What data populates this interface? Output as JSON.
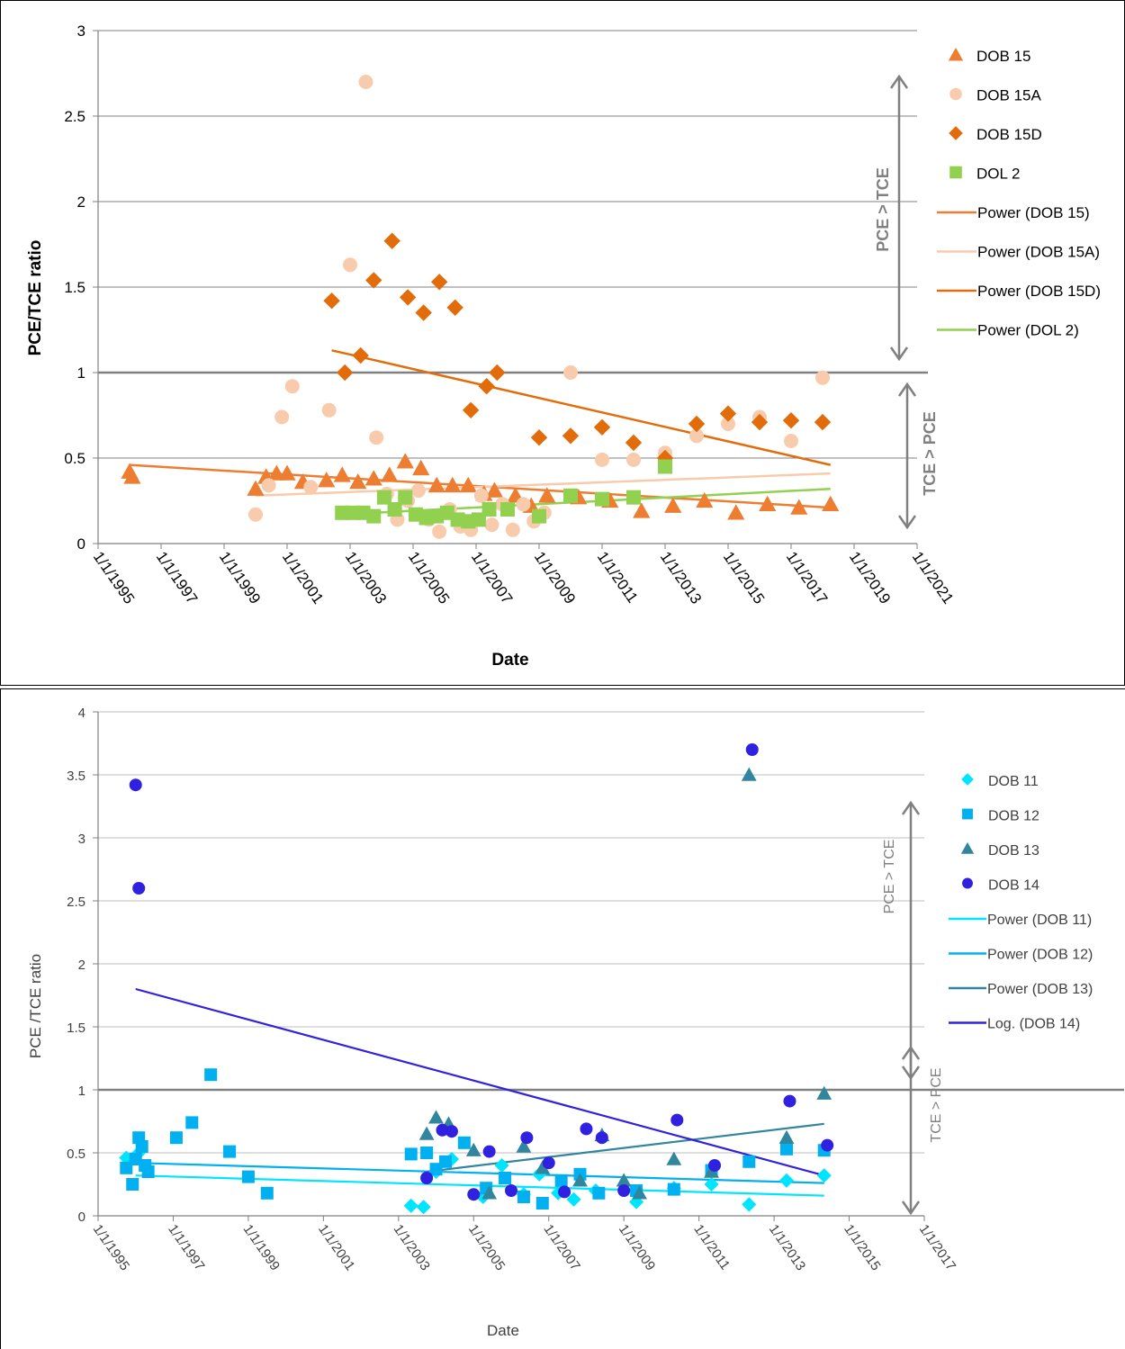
{
  "chart_data": [
    {
      "type": "scatter",
      "title": "",
      "xlabel": "Date",
      "ylabel": "PCE/TCE ratio",
      "ylim": [
        0,
        3
      ],
      "yticks": [
        "0",
        "0.5",
        "1",
        "1.5",
        "2",
        "2.5",
        "3"
      ],
      "xlim": [
        "1995-01-01",
        "2021-01-01"
      ],
      "xticks": [
        "1/1/1995",
        "1/1/1997",
        "1/1/1999",
        "1/1/2001",
        "1/1/2003",
        "1/1/2005",
        "1/1/2007",
        "1/1/2009",
        "1/1/2011",
        "1/1/2013",
        "1/1/2015",
        "1/1/2017",
        "1/1/2019",
        "1/1/2021"
      ],
      "grid": true,
      "legend_position": "right",
      "reference_line": 1,
      "annotations": {
        "upper": "PCE  >  TCE",
        "lower": "TCE  >  PCE"
      },
      "series": [
        {
          "name": "DOB 15",
          "marker": "triangle",
          "color": "#ed7d31",
          "x": [
            "1996-01",
            "1996-02",
            "2000-01",
            "2000-05",
            "2000-09",
            "2001-01",
            "2001-07",
            "2002-04",
            "2002-10",
            "2003-04",
            "2003-10",
            "2004-04",
            "2004-10",
            "2005-04",
            "2005-10",
            "2006-04",
            "2006-10",
            "2007-04",
            "2007-08",
            "2008-04",
            "2008-10",
            "2009-04",
            "2010-04",
            "2011-04",
            "2012-04",
            "2013-04",
            "2014-04",
            "2015-04",
            "2016-04",
            "2017-04",
            "2018-04"
          ],
          "y": [
            0.42,
            0.39,
            0.32,
            0.39,
            0.41,
            0.41,
            0.36,
            0.37,
            0.4,
            0.36,
            0.38,
            0.4,
            0.48,
            0.44,
            0.34,
            0.34,
            0.34,
            0.29,
            0.31,
            0.28,
            0.22,
            0.28,
            0.27,
            0.25,
            0.19,
            0.22,
            0.25,
            0.18,
            0.23,
            0.21,
            0.23
          ]
        },
        {
          "name": "DOB 15A",
          "marker": "circle",
          "color": "#f8cbad",
          "x": [
            "2000-01",
            "2000-06",
            "2000-11",
            "2001-03",
            "2001-10",
            "2002-05",
            "2003-01",
            "2003-07",
            "2003-11",
            "2004-03",
            "2004-07",
            "2004-11",
            "2005-03",
            "2005-07",
            "2005-11",
            "2006-03",
            "2006-07",
            "2006-11",
            "2007-03",
            "2007-07",
            "2007-11",
            "2008-03",
            "2008-07",
            "2008-11",
            "2009-03",
            "2010-01",
            "2011-01",
            "2012-01",
            "2013-01",
            "2014-01",
            "2015-01",
            "2016-01",
            "2017-01",
            "2018-01"
          ],
          "y": [
            0.17,
            0.34,
            0.74,
            0.92,
            0.33,
            0.78,
            1.63,
            2.7,
            0.62,
            0.29,
            0.14,
            0.25,
            0.31,
            0.14,
            0.07,
            0.2,
            0.1,
            0.08,
            0.28,
            0.11,
            0.23,
            0.08,
            0.23,
            0.13,
            0.18,
            1.0,
            0.49,
            0.49,
            0.53,
            0.63,
            0.7,
            0.74,
            0.6,
            0.97
          ]
        },
        {
          "name": "DOB 15D",
          "marker": "diamond",
          "color": "#e36c0a",
          "x": [
            "2002-06",
            "2002-11",
            "2003-05",
            "2003-10",
            "2004-05",
            "2004-11",
            "2005-05",
            "2005-11",
            "2006-05",
            "2006-11",
            "2007-05",
            "2007-09",
            "2009-01",
            "2010-01",
            "2011-01",
            "2012-01",
            "2013-01",
            "2014-01",
            "2015-01",
            "2016-01",
            "2017-01",
            "2018-01"
          ],
          "y": [
            1.42,
            1.0,
            1.1,
            1.54,
            1.77,
            1.44,
            1.35,
            1.53,
            1.38,
            0.78,
            0.92,
            1.0,
            0.62,
            0.63,
            0.68,
            0.59,
            0.5,
            0.7,
            0.76,
            0.71,
            0.72,
            0.71
          ]
        },
        {
          "name": "DOL  2",
          "marker": "square",
          "color": "#92d050",
          "x": [
            "2002-10",
            "2003-02",
            "2003-06",
            "2003-10",
            "2004-02",
            "2004-06",
            "2004-10",
            "2005-02",
            "2005-06",
            "2005-10",
            "2006-02",
            "2006-06",
            "2006-10",
            "2007-02",
            "2007-06",
            "2008-01",
            "2009-01",
            "2010-01",
            "2011-01",
            "2012-01",
            "2013-01"
          ],
          "y": [
            0.18,
            0.18,
            0.18,
            0.16,
            0.27,
            0.2,
            0.27,
            0.17,
            0.15,
            0.16,
            0.18,
            0.14,
            0.13,
            0.14,
            0.2,
            0.2,
            0.16,
            0.28,
            0.26,
            0.27,
            0.45
          ]
        }
      ],
      "trendlines": [
        {
          "name": "Power (DOB 15)",
          "color": "#ed7d31",
          "x": [
            "1996-01",
            "2018-04"
          ],
          "y": [
            0.46,
            0.21
          ]
        },
        {
          "name": "Power (DOB 15A)",
          "color": "#f8cbad",
          "x": [
            "2000-01",
            "2018-04"
          ],
          "y": [
            0.28,
            0.41
          ]
        },
        {
          "name": "Power (DOB 15D)",
          "color": "#e36c0a",
          "x": [
            "2002-06",
            "2018-04"
          ],
          "y": [
            1.13,
            0.46
          ]
        },
        {
          "name": "Power (DOL  2)",
          "color": "#92d050",
          "x": [
            "2002-10",
            "2018-04"
          ],
          "y": [
            0.17,
            0.32
          ]
        }
      ]
    },
    {
      "type": "scatter",
      "title": "",
      "xlabel": "Date",
      "ylabel": "PCE /TCE ratio",
      "ylim": [
        0,
        4
      ],
      "yticks": [
        "0",
        "0.5",
        "1",
        "1.5",
        "2",
        "2.5",
        "3",
        "3.5",
        "4"
      ],
      "xlim": [
        "1995-01-01",
        "2017-01-01"
      ],
      "xticks": [
        "1/1/1995",
        "1/1/1997",
        "1/1/1999",
        "1/1/2001",
        "1/1/2003",
        "1/1/2005",
        "1/1/2007",
        "1/1/2009",
        "1/1/2011",
        "1/1/2013",
        "1/1/2015",
        "1/1/2017"
      ],
      "grid": true,
      "legend_position": "right",
      "reference_line": 1,
      "annotations": {
        "upper": "PCE  >  TCE",
        "lower": "TCE  >  PCE"
      },
      "series": [
        {
          "name": "DOB 11",
          "marker": "diamond",
          "color": "#00e5ff",
          "x": [
            "1995-10",
            "1996-02",
            "2003-05",
            "2003-09",
            "2004-01",
            "2004-06",
            "2005-04",
            "2005-10",
            "2006-05",
            "2006-10",
            "2007-04",
            "2007-09",
            "2008-04",
            "2009-05",
            "2010-05",
            "2011-05",
            "2012-05",
            "2013-05",
            "2014-05"
          ],
          "y": [
            0.46,
            0.5,
            0.08,
            0.07,
            0.35,
            0.45,
            0.15,
            0.4,
            0.17,
            0.33,
            0.18,
            0.13,
            0.2,
            0.11,
            0.22,
            0.25,
            0.09,
            0.28,
            0.32
          ]
        },
        {
          "name": "DOB 12",
          "marker": "square",
          "color": "#00b0f0",
          "x": [
            "1995-10",
            "1995-12",
            "1996-01",
            "1996-02",
            "1996-03",
            "1996-04",
            "1996-05",
            "1997-02",
            "1997-07",
            "1998-01",
            "1998-07",
            "1999-01",
            "1999-07",
            "2003-05",
            "2003-10",
            "2004-01",
            "2004-04",
            "2004-10",
            "2005-05",
            "2005-11",
            "2006-05",
            "2006-11",
            "2007-05",
            "2007-11",
            "2008-05",
            "2009-05",
            "2010-05",
            "2011-05",
            "2012-05",
            "2013-05",
            "2014-05"
          ],
          "y": [
            0.38,
            0.25,
            0.45,
            0.62,
            0.55,
            0.4,
            0.35,
            0.62,
            0.74,
            1.12,
            0.51,
            0.31,
            0.18,
            0.49,
            0.5,
            0.37,
            0.43,
            0.58,
            0.22,
            0.3,
            0.15,
            0.1,
            0.28,
            0.33,
            0.18,
            0.2,
            0.21,
            0.36,
            0.43,
            0.53,
            0.52
          ]
        },
        {
          "name": "DOB 13",
          "marker": "triangle",
          "color": "#31859c",
          "x": [
            "2003-10",
            "2004-01",
            "2004-05",
            "2005-01",
            "2005-06",
            "2006-05",
            "2006-11",
            "2007-11",
            "2008-06",
            "2009-01",
            "2009-06",
            "2010-05",
            "2011-05",
            "2012-05",
            "2013-05",
            "2014-05"
          ],
          "y": [
            0.65,
            0.78,
            0.73,
            0.52,
            0.18,
            0.55,
            0.38,
            0.28,
            0.64,
            0.28,
            0.18,
            0.45,
            0.35,
            3.5,
            0.62,
            0.97
          ]
        },
        {
          "name": "DOB 14",
          "marker": "circle",
          "color": "#3020e0",
          "x": [
            "1996-01",
            "1996-02",
            "2003-10",
            "2004-03",
            "2004-06",
            "2005-01",
            "2005-06",
            "2006-01",
            "2006-06",
            "2007-01",
            "2007-06",
            "2008-01",
            "2008-06",
            "2009-01",
            "2010-06",
            "2011-06",
            "2012-06",
            "2013-06",
            "2014-06"
          ],
          "y": [
            3.42,
            2.6,
            0.3,
            0.68,
            0.67,
            0.17,
            0.51,
            0.2,
            0.62,
            0.42,
            0.19,
            0.69,
            0.62,
            0.2,
            0.76,
            0.4,
            3.7,
            0.91,
            0.56
          ]
        }
      ],
      "trendlines": [
        {
          "name": "Power (DOB 11)",
          "color": "#00e5ff",
          "x": [
            "1996-01",
            "2014-05"
          ],
          "y": [
            0.32,
            0.16
          ]
        },
        {
          "name": "Power (DOB 12)",
          "color": "#00b0f0",
          "x": [
            "1996-01",
            "2014-05"
          ],
          "y": [
            0.42,
            0.26
          ]
        },
        {
          "name": "Power (DOB 13)",
          "color": "#31859c",
          "x": [
            "2003-10",
            "2014-05"
          ],
          "y": [
            0.35,
            0.73
          ]
        },
        {
          "name": "Log. (DOB 14)",
          "color": "#3020e0",
          "x": [
            "1996-01",
            "2014-05"
          ],
          "y": [
            1.8,
            0.32
          ]
        }
      ]
    }
  ]
}
